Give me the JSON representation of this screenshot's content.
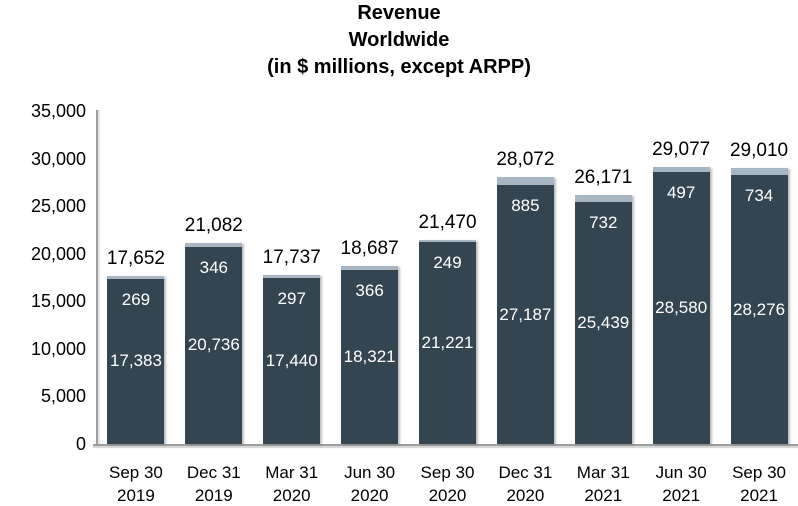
{
  "chart_data": {
    "type": "bar",
    "stacked": true,
    "title_lines": [
      "Revenue",
      "Worldwide",
      "(in $ millions, except ARPP)"
    ],
    "categories": [
      {
        "line1": "Sep 30",
        "line2": "2019"
      },
      {
        "line1": "Dec 31",
        "line2": "2019"
      },
      {
        "line1": "Mar 31",
        "line2": "2020"
      },
      {
        "line1": "Jun 30",
        "line2": "2020"
      },
      {
        "line1": "Sep 30",
        "line2": "2020"
      },
      {
        "line1": "Dec 31",
        "line2": "2020"
      },
      {
        "line1": "Mar 31",
        "line2": "2021"
      },
      {
        "line1": "Jun 30",
        "line2": "2021"
      },
      {
        "line1": "Sep 30",
        "line2": "2021"
      }
    ],
    "series": [
      {
        "name": "base-segment",
        "color": "#334551",
        "values": [
          17383,
          20736,
          17440,
          18321,
          21221,
          27187,
          25439,
          28580,
          28276
        ]
      },
      {
        "name": "top-cap-segment",
        "color": "#a7b6c2",
        "values": [
          269,
          346,
          297,
          366,
          249,
          885,
          732,
          497,
          734
        ]
      }
    ],
    "totals": [
      17652,
      21082,
      17737,
      18687,
      21470,
      28072,
      26171,
      29077,
      29010
    ],
    "y_axis": {
      "min": 0,
      "max": 35000,
      "ticks": [
        0,
        5000,
        10000,
        15000,
        20000,
        25000,
        30000,
        35000
      ]
    },
    "legend": "none",
    "gridlines": false,
    "colors": {
      "total_label": "#000000",
      "inside_label": "#ffffff",
      "axis_line": "#9d9d9d",
      "axis_text": "#000000",
      "background": "#ffffff"
    }
  }
}
